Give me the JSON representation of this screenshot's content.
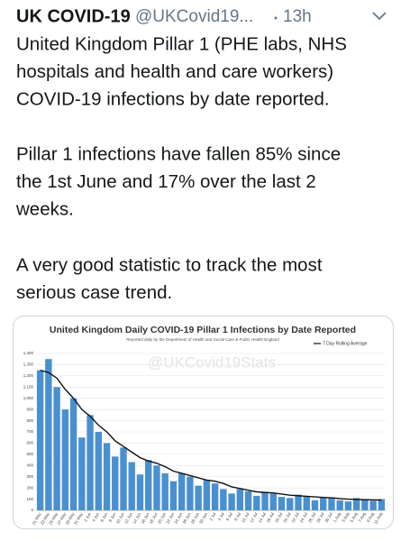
{
  "tweet": {
    "name": "UK COVID-19",
    "handle": "@UKCovid19...",
    "time": "13h",
    "paragraphs": [
      [
        "United Kingdom Pillar 1 (PHE labs, NHS",
        "hospitals and health and care workers)",
        "COVID-19 infections by date reported."
      ],
      [
        "Pillar 1 infections have fallen 85% since",
        "the 1st June and 17% over the last 2",
        "weeks."
      ],
      [
        "A very good statistic to track the most",
        "serious case trend."
      ]
    ]
  },
  "chart_data": {
    "type": "bar",
    "title": "United Kingdom Daily COVID-19 Pillar 1 Infections by Date Reported",
    "subtitle": "Reported daily by the Department of Health and Social Care & Public Health England",
    "watermark": "@UKCovid19Stats",
    "categories": [
      "21 May",
      "23 May",
      "25 May",
      "27 May",
      "29 May",
      "31 May",
      "2 Jun",
      "4 Jun",
      "6 Jun",
      "8 Jun",
      "10 Jun",
      "12 Jun",
      "14 Jun",
      "16 Jun",
      "18 Jun",
      "20 Jun",
      "22 Jun",
      "24 Jun",
      "26 Jun",
      "28 Jun",
      "30 Jun",
      "2 Jul",
      "4 Jul",
      "6 Jul",
      "8 Jul",
      "10 Jul",
      "12 Jul",
      "14 Jul",
      "16 Jul",
      "18 Jul",
      "20 Jul",
      "22 Jul",
      "24 Jul",
      "26 Jul",
      "28 Jul",
      "30 Jul",
      "1 Aug",
      "3 Aug",
      "5 Aug",
      "7 Aug",
      "9 Aug",
      "11 Aug"
    ],
    "values": [
      1250,
      1350,
      1100,
      900,
      1000,
      650,
      850,
      700,
      600,
      480,
      560,
      430,
      320,
      450,
      400,
      330,
      260,
      330,
      300,
      220,
      270,
      240,
      190,
      150,
      190,
      170,
      130,
      160,
      150,
      120,
      110,
      140,
      120,
      90,
      120,
      110,
      90,
      80,
      110,
      100,
      85,
      100
    ],
    "color": "#4a90d0",
    "line": {
      "name": "7 Day Rolling Average",
      "color": "#111111",
      "values": [
        1250,
        1230,
        1180,
        1080,
        1000,
        900,
        840,
        760,
        700,
        620,
        570,
        520,
        470,
        440,
        420,
        390,
        350,
        330,
        310,
        290,
        270,
        260,
        240,
        210,
        195,
        180,
        165,
        160,
        155,
        145,
        135,
        130,
        125,
        120,
        115,
        112,
        105,
        100,
        97,
        95,
        93,
        92
      ]
    },
    "ylim": [
      0,
      1400
    ],
    "yticks": [
      0,
      100,
      200,
      300,
      400,
      500,
      600,
      700,
      800,
      900,
      {
        "value": 1000,
        "label": "1,000"
      },
      {
        "value": 1100,
        "label": "1,100"
      },
      {
        "value": 1200,
        "label": "1,200"
      },
      {
        "value": 1300,
        "label": "1,300"
      },
      {
        "value": 1400,
        "label": "1,400"
      }
    ],
    "grid": true
  }
}
